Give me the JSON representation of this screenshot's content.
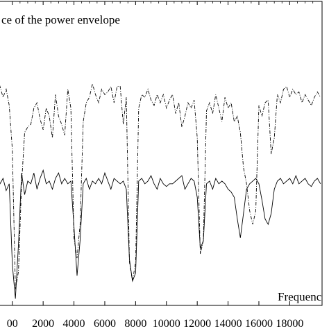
{
  "chart_data": {
    "type": "line",
    "title": "ce of the power envelope",
    "xlabel": "Frequenc",
    "ylabel": "",
    "xlim": [
      -1250,
      20100
    ],
    "ylim": [
      -1.2,
      1.05
    ],
    "x_ticks": [
      {
        "value": 0,
        "label": "00"
      },
      {
        "value": 2000,
        "label": "2000"
      },
      {
        "value": 4000,
        "label": "4000"
      },
      {
        "value": 6000,
        "label": "6000"
      },
      {
        "value": 8000,
        "label": "8000"
      },
      {
        "value": 10000,
        "label": "10000"
      },
      {
        "value": 12000,
        "label": "12000"
      },
      {
        "value": 14000,
        "label": "14000"
      },
      {
        "value": 16000,
        "label": "16000"
      },
      {
        "value": 18000,
        "label": "18000"
      }
    ],
    "grid": false,
    "legend": "none",
    "series": [
      {
        "style": "dashdot",
        "color": "#000000",
        "x": [
          -1000,
          -800,
          -600,
          -400,
          -200,
          0,
          200,
          400,
          600,
          800,
          1000,
          1200,
          1400,
          1600,
          1800,
          2000,
          2200,
          2400,
          2600,
          2800,
          3000,
          3200,
          3400,
          3600,
          3800,
          4000,
          4200,
          4400,
          4600,
          4800,
          5000,
          5200,
          5400,
          5600,
          5800,
          6000,
          6200,
          6400,
          6600,
          6800,
          7000,
          7200,
          7400,
          7600,
          7800,
          8000,
          8200,
          8400,
          8600,
          8800,
          9000,
          9200,
          9400,
          9600,
          9800,
          10000,
          10200,
          10400,
          10600,
          10800,
          11000,
          11200,
          11400,
          11600,
          11800,
          12000,
          12200,
          12400,
          12600,
          12800,
          13000,
          13200,
          13400,
          13600,
          13800,
          14000,
          14200,
          14400,
          14600,
          14800,
          15000,
          15200,
          15400,
          15600,
          15800,
          16000,
          16200,
          16400,
          16600,
          16800,
          17000,
          17200,
          17400,
          17600,
          17800,
          18000,
          18200,
          18400,
          18600,
          18800,
          19000,
          19200,
          19400,
          19600,
          19800,
          20000
        ],
        "y": [
          0.36,
          0.42,
          0.34,
          0.4,
          0.28,
          -0.05,
          -1.08,
          -0.95,
          -0.3,
          0.08,
          0.12,
          0.14,
          0.26,
          0.3,
          0.18,
          0.1,
          0.26,
          0.2,
          0.04,
          0.36,
          0.2,
          0.14,
          0.06,
          0.4,
          0.26,
          -0.7,
          -0.85,
          -0.6,
          0.16,
          0.3,
          0.34,
          0.44,
          0.36,
          0.3,
          0.4,
          0.36,
          0.38,
          0.42,
          0.3,
          0.42,
          0.42,
          0.14,
          0.34,
          -0.88,
          -1.02,
          -0.88,
          0.26,
          0.36,
          0.34,
          0.4,
          0.32,
          0.28,
          0.36,
          0.3,
          0.36,
          0.26,
          0.32,
          0.36,
          0.22,
          0.3,
          0.12,
          0.2,
          0.3,
          0.26,
          0.32,
          0.04,
          -0.82,
          -0.72,
          0.24,
          0.3,
          0.22,
          0.36,
          0.26,
          0.16,
          0.34,
          0.26,
          0.3,
          0.16,
          0.2,
          0.08,
          -0.18,
          -0.3,
          -0.5,
          -0.6,
          -0.5,
          0.28,
          0.2,
          0.3,
          0.32,
          -0.08,
          0.04,
          0.36,
          0.3,
          0.4,
          0.42,
          0.34,
          0.4,
          0.36,
          0.38,
          0.3,
          0.36,
          0.32,
          0.28,
          0.34,
          0.38,
          0.34
        ]
      },
      {
        "style": "solid",
        "color": "#000000",
        "x": [
          -1000,
          -800,
          -600,
          -400,
          -200,
          0,
          200,
          400,
          600,
          800,
          1000,
          1200,
          1400,
          1600,
          1800,
          2000,
          2200,
          2400,
          2600,
          2800,
          3000,
          3200,
          3400,
          3600,
          3800,
          4000,
          4200,
          4400,
          4600,
          4800,
          5000,
          5200,
          5400,
          5600,
          5800,
          6000,
          6200,
          6400,
          6600,
          6800,
          7000,
          7200,
          7400,
          7600,
          7800,
          8000,
          8200,
          8400,
          8600,
          8800,
          9000,
          9200,
          9400,
          9600,
          9800,
          10000,
          10200,
          10400,
          10600,
          10800,
          11000,
          11200,
          11400,
          11600,
          11800,
          12000,
          12200,
          12400,
          12600,
          12800,
          13000,
          13200,
          13400,
          13600,
          13800,
          14000,
          14200,
          14400,
          14600,
          14800,
          15000,
          15200,
          15400,
          15600,
          15800,
          16000,
          16200,
          16400,
          16600,
          16800,
          17000,
          17200,
          17400,
          17600,
          17800,
          18000,
          18200,
          18400,
          18600,
          18800,
          19000,
          19200,
          19400,
          19600,
          19800,
          20000
        ],
        "y": [
          -0.22,
          -0.3,
          -0.26,
          -0.35,
          -0.3,
          -0.9,
          -1.15,
          -0.75,
          -0.22,
          -0.38,
          -0.28,
          -0.3,
          -0.22,
          -0.34,
          -0.26,
          -0.2,
          -0.3,
          -0.28,
          -0.34,
          -0.26,
          -0.22,
          -0.3,
          -0.26,
          -0.3,
          -0.28,
          -0.62,
          -0.98,
          -0.72,
          -0.3,
          -0.26,
          -0.34,
          -0.28,
          -0.3,
          -0.26,
          -0.3,
          -0.22,
          -0.28,
          -0.34,
          -0.26,
          -0.28,
          -0.3,
          -0.28,
          -0.34,
          -0.86,
          -1.02,
          -0.96,
          -0.28,
          -0.26,
          -0.3,
          -0.28,
          -0.24,
          -0.3,
          -0.34,
          -0.26,
          -0.3,
          -0.32,
          -0.3,
          -0.3,
          -0.28,
          -0.26,
          -0.24,
          -0.34,
          -0.3,
          -0.26,
          -0.28,
          -0.4,
          -0.78,
          -0.72,
          -0.3,
          -0.28,
          -0.34,
          -0.26,
          -0.3,
          -0.28,
          -0.3,
          -0.34,
          -0.36,
          -0.4,
          -0.56,
          -0.7,
          -0.52,
          -0.34,
          -0.3,
          -0.28,
          -0.26,
          -0.3,
          -0.42,
          -0.56,
          -0.6,
          -0.52,
          -0.34,
          -0.28,
          -0.26,
          -0.3,
          -0.28,
          -0.26,
          -0.3,
          -0.24,
          -0.3,
          -0.28,
          -0.26,
          -0.3,
          -0.32,
          -0.28,
          -0.26,
          -0.3
        ]
      }
    ]
  }
}
